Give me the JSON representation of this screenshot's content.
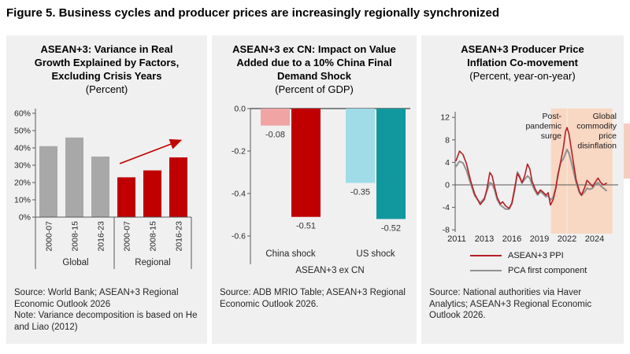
{
  "figure_title": "Figure 5. Business cycles and producer prices are increasingly regionally synchronized",
  "panels": [
    {
      "title_line1": "ASEAN+3: Variance in Real",
      "title_line2": "Growth Explained by Factors,",
      "title_line3": "Excluding Crisis Years",
      "subtitle": "(Percent)",
      "source": "Source: World Bank; ASEAN+3 Regional Economic Outlook 2026",
      "note": "Note: Variance decomposition is based on He and Liao (2012)"
    },
    {
      "title_line1": "ASEAN+3 ex CN: Impact on Value",
      "title_line2": "Added due to a 10% China Final",
      "title_line3": "Demand Shock",
      "subtitle": "(Percent of GDP)",
      "source": "Source: ADB MRIO Table; ASEAN+3 Regional Economic Outlook 2026."
    },
    {
      "title_line1": "ASEAN+3 Producer Price",
      "title_line2": "Inflation Co-movement",
      "subtitle": "(Percent, year-on-year)",
      "source": "Source: National authorities via Haver Analytics; ASEAN+3 Regional Economic Outlook 2026."
    }
  ],
  "chart_data": [
    {
      "type": "bar",
      "title": "ASEAN+3: Variance in Real Growth Explained by Factors, Excluding Crisis Years",
      "subtitle": "(Percent)",
      "categories": [
        "2000-07",
        "2008-15",
        "2016-23"
      ],
      "groups": [
        "Global",
        "Regional"
      ],
      "series": [
        {
          "name": "Global",
          "color": "#a8a8a8",
          "values": [
            41,
            46,
            35
          ]
        },
        {
          "name": "Regional",
          "color": "#c00000",
          "values": [
            23,
            27,
            34.5
          ]
        }
      ],
      "ylim": [
        0,
        60
      ],
      "yticks": [
        0,
        10,
        20,
        30,
        40,
        50,
        60
      ],
      "ytick_suffix": "%",
      "annotation": "upward trend arrow over Regional bars",
      "arrow_color": "#c00000"
    },
    {
      "type": "bar",
      "title": "ASEAN+3 ex CN: Impact on Value Added due to a 10% China Final Demand Shock",
      "subtitle": "(Percent of GDP)",
      "xlabel": "ASEAN+3 ex CN",
      "groups": [
        "China shock",
        "US shock"
      ],
      "bars": [
        {
          "group": "China shock",
          "value": -0.08,
          "label": "-0.08",
          "color": "#f0a4a4"
        },
        {
          "group": "China shock",
          "value": -0.51,
          "label": "-0.51",
          "color": "#c00000"
        },
        {
          "group": "US shock",
          "value": -0.35,
          "label": "-0.35",
          "color": "#9fdce7"
        },
        {
          "group": "US shock",
          "value": -0.52,
          "label": "-0.52",
          "color": "#11989f"
        }
      ],
      "ylim": [
        -0.6,
        0
      ],
      "yticks": [
        0,
        -0.2,
        -0.4,
        -0.6
      ]
    },
    {
      "type": "line",
      "title": "ASEAN+3 Producer Price Inflation Co-movement",
      "subtitle": "(Percent, year-on-year)",
      "ylim": [
        -8,
        12
      ],
      "yticks": [
        -8,
        -4,
        0,
        4,
        8,
        12
      ],
      "xticks": [
        2011,
        2013,
        2016,
        2019,
        2022,
        2024
      ],
      "shaded_regions": [
        {
          "label": "Post-pandemic surge",
          "from": 2020.25,
          "to": 2021.97,
          "color": "#f8d7c3",
          "label_lines": [
            "Post-",
            "pandemic",
            "surge"
          ]
        },
        {
          "label": "Global commodity price disinflation",
          "from": 2022.03,
          "to": 2025.3,
          "color": "#f8d7c3",
          "label_lines": [
            "Global",
            "commodity",
            "price",
            "disinflation"
          ]
        }
      ],
      "series": [
        {
          "name": "ASEAN+3 PPI",
          "color": "#b42025",
          "points": [
            [
              2010.95,
              4.3
            ],
            [
              2011.2,
              6.0
            ],
            [
              2011.45,
              5.4
            ],
            [
              2011.7,
              3.8
            ],
            [
              2012.0,
              0.8
            ],
            [
              2012.3,
              -1.6
            ],
            [
              2012.7,
              -3.5
            ],
            [
              2013.0,
              -2.6
            ],
            [
              2013.3,
              -0.6
            ],
            [
              2013.6,
              2.2
            ],
            [
              2013.85,
              1.6
            ],
            [
              2014.1,
              -0.2
            ],
            [
              2014.4,
              -2.2
            ],
            [
              2014.75,
              -3.4
            ],
            [
              2015.0,
              -3.0
            ],
            [
              2015.3,
              -3.7
            ],
            [
              2015.7,
              -4.2
            ],
            [
              2016.0,
              -3.2
            ],
            [
              2016.3,
              -0.6
            ],
            [
              2016.6,
              2.0
            ],
            [
              2016.85,
              1.3
            ],
            [
              2017.1,
              0.4
            ],
            [
              2017.4,
              1.6
            ],
            [
              2017.7,
              3.7
            ],
            [
              2017.95,
              2.8
            ],
            [
              2018.2,
              0.6
            ],
            [
              2018.5,
              -0.6
            ],
            [
              2018.8,
              -1.6
            ],
            [
              2019.1,
              -0.9
            ],
            [
              2019.4,
              -1.3
            ],
            [
              2019.7,
              -1.8
            ],
            [
              2019.95,
              -1.4
            ],
            [
              2020.2,
              -3.6
            ],
            [
              2020.5,
              -2.6
            ],
            [
              2020.8,
              -0.5
            ],
            [
              2021.0,
              1.5
            ],
            [
              2021.3,
              4.0
            ],
            [
              2021.6,
              6.5
            ],
            [
              2021.85,
              9.5
            ],
            [
              2022.0,
              10.2
            ],
            [
              2022.15,
              9.0
            ],
            [
              2022.4,
              5.0
            ],
            [
              2022.65,
              1.0
            ],
            [
              2022.9,
              -1.2
            ],
            [
              2023.05,
              -1.8
            ],
            [
              2023.3,
              -0.4
            ],
            [
              2023.45,
              0.8
            ],
            [
              2023.65,
              0.3
            ],
            [
              2023.85,
              -0.3
            ],
            [
              2024.05,
              0.5
            ],
            [
              2024.25,
              1.2
            ],
            [
              2024.45,
              0.4
            ],
            [
              2024.65,
              0.0
            ],
            [
              2024.85,
              0.3
            ]
          ]
        },
        {
          "name": "PCA first component",
          "color": "#919191",
          "points": [
            [
              2010.95,
              3.3
            ],
            [
              2011.2,
              4.2
            ],
            [
              2011.45,
              3.9
            ],
            [
              2011.7,
              2.6
            ],
            [
              2012.0,
              0.3
            ],
            [
              2012.3,
              -1.9
            ],
            [
              2012.7,
              -3.2
            ],
            [
              2013.0,
              -2.4
            ],
            [
              2013.3,
              -1.0
            ],
            [
              2013.6,
              0.4
            ],
            [
              2013.85,
              0.2
            ],
            [
              2014.1,
              -0.8
            ],
            [
              2014.4,
              -2.6
            ],
            [
              2014.75,
              -3.6
            ],
            [
              2015.0,
              -3.9
            ],
            [
              2015.3,
              -4.3
            ],
            [
              2015.7,
              -4.3
            ],
            [
              2016.0,
              -3.4
            ],
            [
              2016.3,
              -1.0
            ],
            [
              2016.6,
              2.3
            ],
            [
              2016.85,
              1.6
            ],
            [
              2017.1,
              0.3
            ],
            [
              2017.4,
              1.0
            ],
            [
              2017.7,
              1.6
            ],
            [
              2017.95,
              1.2
            ],
            [
              2018.2,
              0.0
            ],
            [
              2018.5,
              -1.0
            ],
            [
              2018.8,
              -1.8
            ],
            [
              2019.1,
              -1.2
            ],
            [
              2019.4,
              -1.6
            ],
            [
              2019.7,
              -2.1
            ],
            [
              2019.95,
              -1.9
            ],
            [
              2020.2,
              -2.7
            ],
            [
              2020.5,
              -2.2
            ],
            [
              2020.8,
              -0.3
            ],
            [
              2021.0,
              1.8
            ],
            [
              2021.3,
              3.9
            ],
            [
              2021.6,
              4.6
            ],
            [
              2021.85,
              5.6
            ],
            [
              2022.0,
              6.3
            ],
            [
              2022.15,
              5.6
            ],
            [
              2022.4,
              3.2
            ],
            [
              2022.65,
              0.5
            ],
            [
              2022.9,
              -1.4
            ],
            [
              2023.05,
              -1.9
            ],
            [
              2023.3,
              -1.2
            ],
            [
              2023.45,
              -0.6
            ],
            [
              2023.65,
              -0.8
            ],
            [
              2023.85,
              -0.6
            ],
            [
              2024.05,
              0.1
            ],
            [
              2024.25,
              0.4
            ],
            [
              2024.45,
              -0.2
            ],
            [
              2024.65,
              -0.6
            ],
            [
              2024.85,
              -1.0
            ]
          ]
        }
      ],
      "legend_position": "bottom"
    }
  ]
}
